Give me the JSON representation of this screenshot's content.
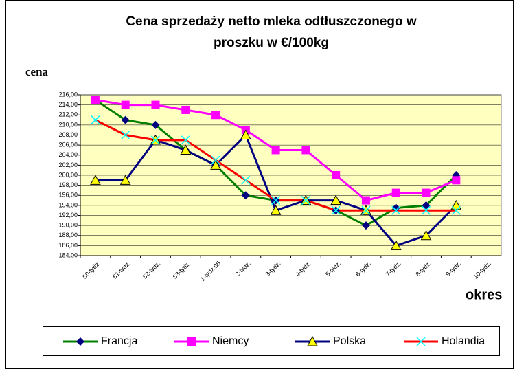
{
  "chart_data": {
    "type": "line",
    "title": [
      "Cena sprzedaży netto mleka odtłuszczonego w",
      "proszku w €/100kg"
    ],
    "y_label": "cena",
    "x_label": "okres",
    "categories": [
      "50-tydz.",
      "51-tydz.",
      "52-tydz.",
      "53-tydz.",
      "1-tydz.05",
      "2-tydz.",
      "3-tydz.",
      "4-tydz.",
      "5-tydz.",
      "6-tydz.",
      "7-tydz.",
      "8-tydz.",
      "9-tydz.",
      "10-tydz."
    ],
    "series": [
      {
        "name": "Francja",
        "color": "#008000",
        "marker": "diamond",
        "marker_color": "#000080",
        "values": [
          215,
          211,
          210,
          205,
          202,
          196,
          195,
          195,
          193,
          190,
          193.5,
          194,
          200,
          null
        ]
      },
      {
        "name": "Niemcy",
        "color": "#ff00ff",
        "marker": "square",
        "marker_color": "#ff00ff",
        "values": [
          215,
          214,
          214,
          213,
          212,
          209,
          205,
          205,
          200,
          195,
          196.5,
          196.5,
          199,
          null
        ]
      },
      {
        "name": "Polska",
        "color": "#000080",
        "marker": "triangle",
        "marker_color": "#ffff00",
        "values": [
          199,
          199,
          207,
          205,
          202,
          208,
          193,
          195,
          195,
          193,
          186,
          188,
          194,
          null
        ]
      },
      {
        "name": "Holandia",
        "color": "#ff0000",
        "marker": "x",
        "marker_color": "#00ffff",
        "values": [
          211,
          208,
          207,
          207,
          203,
          199,
          195,
          195,
          193,
          193,
          193,
          193,
          193,
          null
        ]
      }
    ],
    "ylim": [
      184,
      216
    ],
    "yticks": [
      {
        "value": 184,
        "label": "184,00"
      },
      {
        "value": 186,
        "label": "186,00"
      },
      {
        "value": 188,
        "label": "188,00"
      },
      {
        "value": 190,
        "label": "190,00"
      },
      {
        "value": 192,
        "label": "192,00"
      },
      {
        "value": 194,
        "label": "194,00"
      },
      {
        "value": 196,
        "label": "196,00"
      },
      {
        "value": 198,
        "label": "198,00"
      },
      {
        "value": 200,
        "label": "200,00"
      },
      {
        "value": 202,
        "label": "202,00"
      },
      {
        "value": 204,
        "label": "204,00"
      },
      {
        "value": 206,
        "label": "206,00"
      },
      {
        "value": 208,
        "label": "208,00"
      },
      {
        "value": 210,
        "label": "210,00"
      },
      {
        "value": 212,
        "label": "212,00"
      },
      {
        "value": 214,
        "label": "214,00"
      },
      {
        "value": 216,
        "label": "216,00"
      }
    ],
    "grid": true,
    "plot_background": "#ffffc0",
    "legend": "bottom"
  }
}
